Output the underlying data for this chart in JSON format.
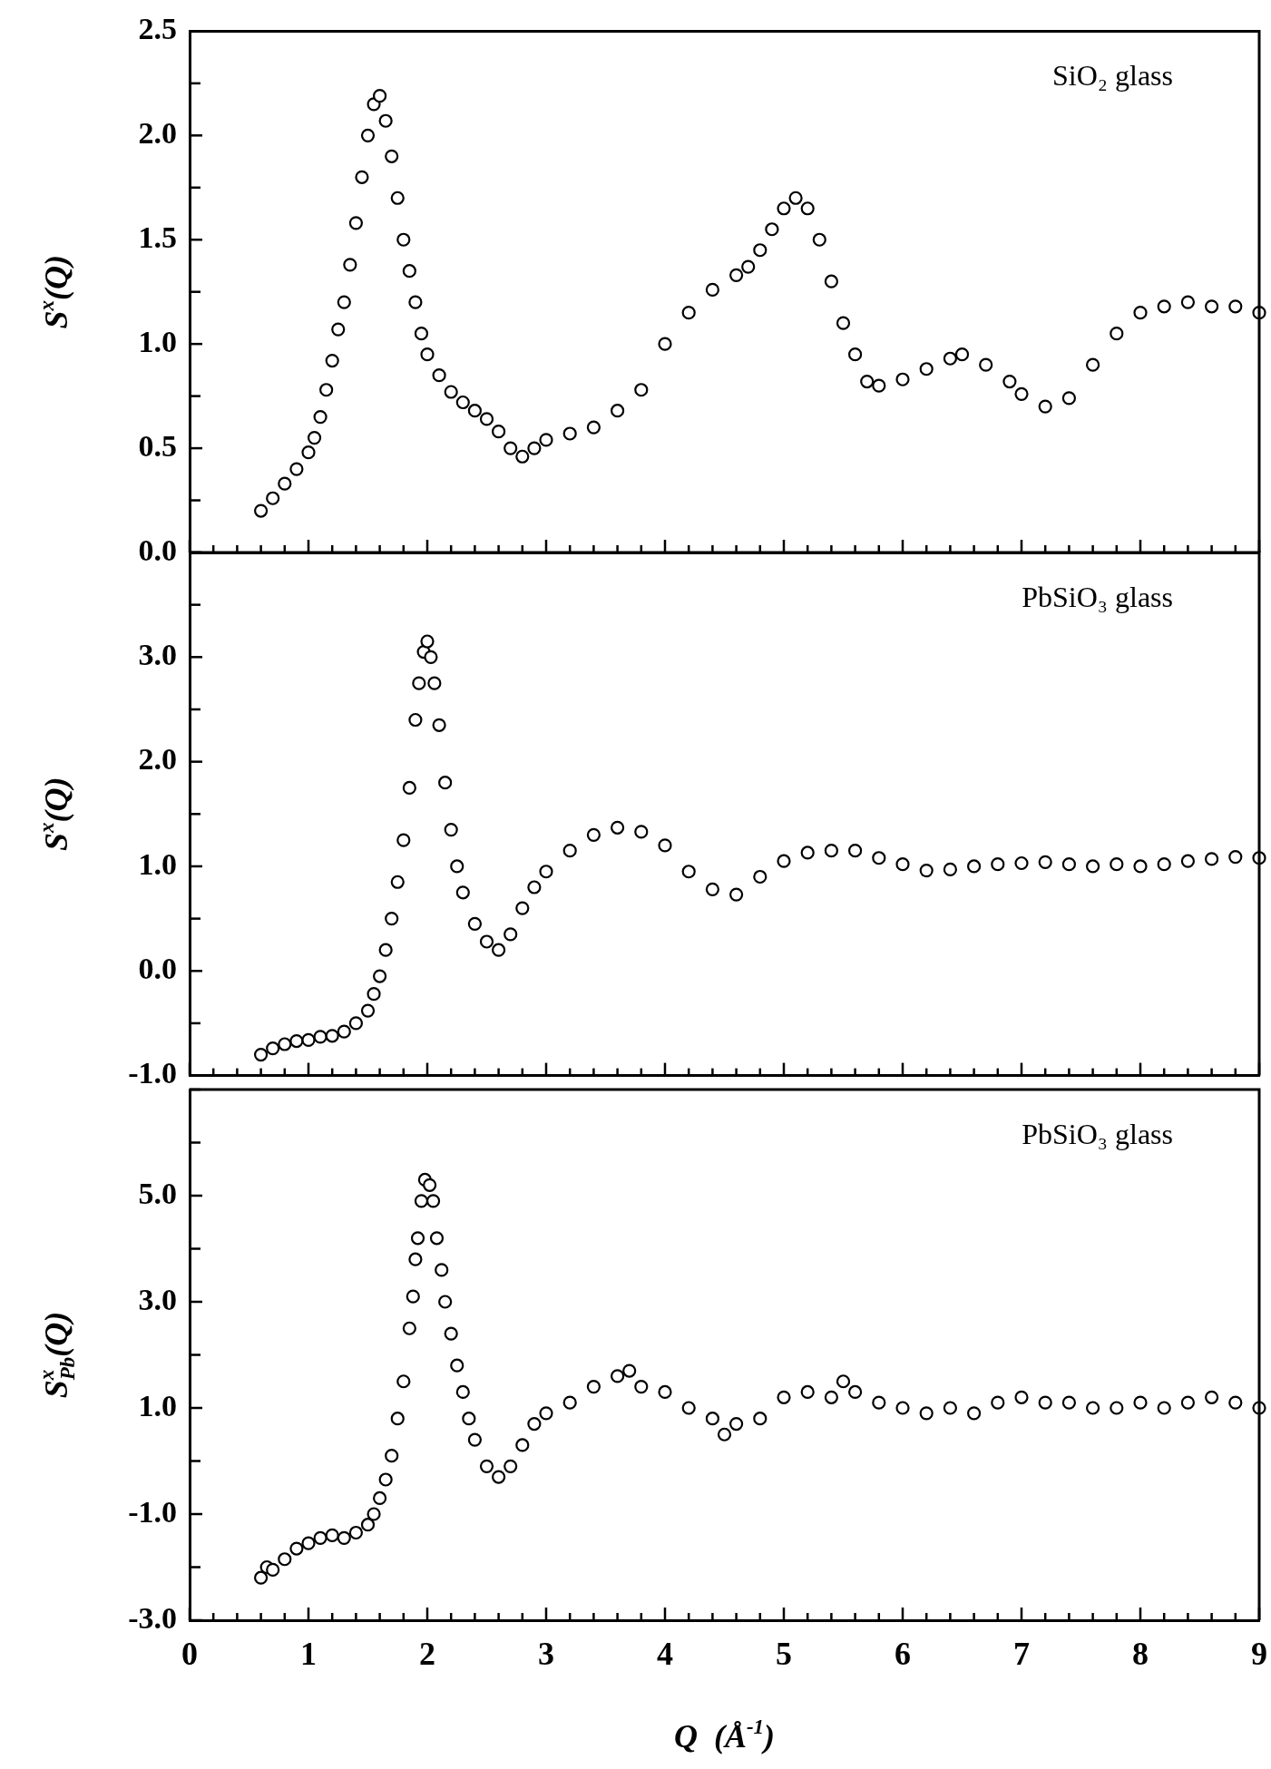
{
  "chart_data": [
    {
      "type": "scatter",
      "ylabel": "S$^{x}$(Q)",
      "annotations": [
        "SiO₂ glass"
      ],
      "marker": "circle",
      "tick_labels": "y",
      "xlim": [
        0,
        9
      ],
      "xticks": [
        0,
        {
          "value": 0.2,
          "label": null
        },
        {
          "value": 0.4,
          "label": null
        },
        {
          "value": 0.6,
          "label": null
        },
        {
          "value": 0.8,
          "label": null
        },
        1,
        {
          "value": 1.2,
          "label": null
        },
        {
          "value": 1.4,
          "label": null
        },
        {
          "value": 1.6,
          "label": null
        },
        {
          "value": 1.8,
          "label": null
        },
        2,
        {
          "value": 2.2,
          "label": null
        },
        {
          "value": 2.4,
          "label": null
        },
        {
          "value": 2.6,
          "label": null
        },
        {
          "value": 2.8,
          "label": null
        },
        3,
        {
          "value": 3.2,
          "label": null
        },
        {
          "value": 3.4,
          "label": null
        },
        {
          "value": 3.6,
          "label": null
        },
        {
          "value": 3.8,
          "label": null
        },
        4,
        {
          "value": 4.2,
          "label": null
        },
        {
          "value": 4.4,
          "label": null
        },
        {
          "value": 4.6,
          "label": null
        },
        {
          "value": 4.8,
          "label": null
        },
        5,
        {
          "value": 5.2,
          "label": null
        },
        {
          "value": 5.4,
          "label": null
        },
        {
          "value": 5.6,
          "label": null
        },
        {
          "value": 5.8,
          "label": null
        },
        6,
        {
          "value": 6.2,
          "label": null
        },
        {
          "value": 6.4,
          "label": null
        },
        {
          "value": 6.6,
          "label": null
        },
        {
          "value": 6.8,
          "label": null
        },
        7,
        {
          "value": 7.2,
          "label": null
        },
        {
          "value": 7.4,
          "label": null
        },
        {
          "value": 7.6,
          "label": null
        },
        {
          "value": 7.8,
          "label": null
        },
        8,
        {
          "value": 8.2,
          "label": null
        },
        {
          "value": 8.4,
          "label": null
        },
        {
          "value": 8.6,
          "label": null
        },
        {
          "value": 8.8,
          "label": null
        },
        9
      ],
      "ylim": [
        0,
        2.5
      ],
      "yticks": [
        {
          "value": 0,
          "label": "0.0"
        },
        {
          "value": 0.25,
          "label": null
        },
        {
          "value": 0.5,
          "label": "0.5"
        },
        {
          "value": 0.75,
          "label": null
        },
        {
          "value": 1,
          "label": "1.0"
        },
        {
          "value": 1.25,
          "label": null
        },
        {
          "value": 1.5,
          "label": "1.5"
        },
        {
          "value": 1.75,
          "label": null
        },
        {
          "value": 2,
          "label": "2.0"
        },
        {
          "value": 2.25,
          "label": null
        },
        {
          "value": 2.5,
          "label": "2.5"
        }
      ],
      "series": [
        {
          "color": "#000000",
          "x": [
            0.6,
            0.7,
            0.8,
            0.9,
            1.0,
            1.05,
            1.1,
            1.15,
            1.2,
            1.25,
            1.3,
            1.35,
            1.4,
            1.45,
            1.5,
            1.55,
            1.6,
            1.65,
            1.7,
            1.75,
            1.8,
            1.85,
            1.9,
            1.95,
            2.0,
            2.1,
            2.2,
            2.3,
            2.4,
            2.5,
            2.6,
            2.7,
            2.8,
            2.9,
            3.0,
            3.2,
            3.4,
            3.6,
            3.8,
            4.0,
            4.2,
            4.4,
            4.6,
            4.7,
            4.8,
            4.9,
            5.0,
            5.1,
            5.2,
            5.3,
            5.4,
            5.5,
            5.6,
            5.7,
            5.8,
            6.0,
            6.2,
            6.4,
            6.5,
            6.7,
            6.9,
            7.0,
            7.2,
            7.4,
            7.6,
            7.8,
            8.0,
            8.2,
            8.4,
            8.6,
            8.8,
            9.0
          ],
          "values": [
            0.2,
            0.26,
            0.33,
            0.4,
            0.48,
            0.55,
            0.65,
            0.78,
            0.92,
            1.07,
            1.2,
            1.38,
            1.58,
            1.8,
            2.0,
            2.15,
            2.19,
            2.07,
            1.9,
            1.7,
            1.5,
            1.35,
            1.2,
            1.05,
            0.95,
            0.85,
            0.77,
            0.72,
            0.68,
            0.64,
            0.58,
            0.5,
            0.46,
            0.5,
            0.54,
            0.57,
            0.6,
            0.68,
            0.78,
            1.0,
            1.15,
            1.26,
            1.33,
            1.37,
            1.45,
            1.55,
            1.65,
            1.7,
            1.65,
            1.5,
            1.3,
            1.1,
            0.95,
            0.82,
            0.8,
            0.83,
            0.88,
            0.93,
            0.95,
            0.9,
            0.82,
            0.76,
            0.7,
            0.74,
            0.9,
            1.05,
            1.15,
            1.18,
            1.2,
            1.18,
            1.18,
            1.15
          ]
        }
      ]
    },
    {
      "type": "scatter",
      "ylabel": "S$^{x}$(Q)",
      "annotations": [
        "PbSiO₃ glass"
      ],
      "marker": "circle",
      "tick_labels": "y",
      "xlim": [
        0,
        9
      ],
      "xticks": [
        0,
        {
          "value": 0.2,
          "label": null
        },
        {
          "value": 0.4,
          "label": null
        },
        {
          "value": 0.6,
          "label": null
        },
        {
          "value": 0.8,
          "label": null
        },
        1,
        {
          "value": 1.2,
          "label": null
        },
        {
          "value": 1.4,
          "label": null
        },
        {
          "value": 1.6,
          "label": null
        },
        {
          "value": 1.8,
          "label": null
        },
        2,
        {
          "value": 2.2,
          "label": null
        },
        {
          "value": 2.4,
          "label": null
        },
        {
          "value": 2.6,
          "label": null
        },
        {
          "value": 2.8,
          "label": null
        },
        3,
        {
          "value": 3.2,
          "label": null
        },
        {
          "value": 3.4,
          "label": null
        },
        {
          "value": 3.6,
          "label": null
        },
        {
          "value": 3.8,
          "label": null
        },
        4,
        {
          "value": 4.2,
          "label": null
        },
        {
          "value": 4.4,
          "label": null
        },
        {
          "value": 4.6,
          "label": null
        },
        {
          "value": 4.8,
          "label": null
        },
        5,
        {
          "value": 5.2,
          "label": null
        },
        {
          "value": 5.4,
          "label": null
        },
        {
          "value": 5.6,
          "label": null
        },
        {
          "value": 5.8,
          "label": null
        },
        6,
        {
          "value": 6.2,
          "label": null
        },
        {
          "value": 6.4,
          "label": null
        },
        {
          "value": 6.6,
          "label": null
        },
        {
          "value": 6.8,
          "label": null
        },
        7,
        {
          "value": 7.2,
          "label": null
        },
        {
          "value": 7.4,
          "label": null
        },
        {
          "value": 7.6,
          "label": null
        },
        {
          "value": 7.8,
          "label": null
        },
        8,
        {
          "value": 8.2,
          "label": null
        },
        {
          "value": 8.4,
          "label": null
        },
        {
          "value": 8.6,
          "label": null
        },
        {
          "value": 8.8,
          "label": null
        },
        9
      ],
      "ylim": [
        -1,
        4
      ],
      "yticks": [
        {
          "value": -1,
          "label": "-1.0"
        },
        {
          "value": -0.5,
          "label": null
        },
        {
          "value": 0,
          "label": "0.0"
        },
        {
          "value": 0.5,
          "label": null
        },
        {
          "value": 1,
          "label": "1.0"
        },
        {
          "value": 1.5,
          "label": null
        },
        {
          "value": 2,
          "label": "2.0"
        },
        {
          "value": 2.5,
          "label": null
        },
        {
          "value": 3,
          "label": "3.0"
        },
        {
          "value": 3.5,
          "label": null
        },
        {
          "value": 4,
          "label": null
        }
      ],
      "series": [
        {
          "color": "#000000",
          "x": [
            0.6,
            0.7,
            0.8,
            0.9,
            1.0,
            1.1,
            1.2,
            1.3,
            1.4,
            1.5,
            1.55,
            1.6,
            1.65,
            1.7,
            1.75,
            1.8,
            1.85,
            1.9,
            1.93,
            1.97,
            2.0,
            2.03,
            2.06,
            2.1,
            2.15,
            2.2,
            2.25,
            2.3,
            2.4,
            2.5,
            2.6,
            2.7,
            2.8,
            2.9,
            3.0,
            3.2,
            3.4,
            3.6,
            3.8,
            4.0,
            4.2,
            4.4,
            4.6,
            4.8,
            5.0,
            5.2,
            5.4,
            5.6,
            5.8,
            6.0,
            6.2,
            6.4,
            6.6,
            6.8,
            7.0,
            7.2,
            7.4,
            7.6,
            7.8,
            8.0,
            8.2,
            8.4,
            8.6,
            8.8,
            9.0
          ],
          "values": [
            -0.8,
            -0.74,
            -0.7,
            -0.67,
            -0.66,
            -0.63,
            -0.62,
            -0.58,
            -0.5,
            -0.38,
            -0.22,
            -0.05,
            0.2,
            0.5,
            0.85,
            1.25,
            1.75,
            2.4,
            2.75,
            3.05,
            3.15,
            3.0,
            2.75,
            2.35,
            1.8,
            1.35,
            1.0,
            0.75,
            0.45,
            0.28,
            0.2,
            0.35,
            0.6,
            0.8,
            0.95,
            1.15,
            1.3,
            1.37,
            1.33,
            1.2,
            0.95,
            0.78,
            0.73,
            0.9,
            1.05,
            1.13,
            1.15,
            1.15,
            1.08,
            1.02,
            0.96,
            0.97,
            1.0,
            1.02,
            1.03,
            1.04,
            1.02,
            1.0,
            1.02,
            1.0,
            1.02,
            1.05,
            1.07,
            1.09,
            1.08
          ]
        }
      ]
    },
    {
      "type": "scatter",
      "ylabel": "S$^{x}$$_{Pb}$(Q)",
      "xlabel": "Q  (Å$^{-1}$)",
      "annotations": [
        "PbSiO₃ glass"
      ],
      "marker": "circle",
      "xlim": [
        0,
        9
      ],
      "xticks": [
        0,
        {
          "value": 0.2,
          "label": null
        },
        {
          "value": 0.4,
          "label": null
        },
        {
          "value": 0.6,
          "label": null
        },
        {
          "value": 0.8,
          "label": null
        },
        1,
        {
          "value": 1.2,
          "label": null
        },
        {
          "value": 1.4,
          "label": null
        },
        {
          "value": 1.6,
          "label": null
        },
        {
          "value": 1.8,
          "label": null
        },
        2,
        {
          "value": 2.2,
          "label": null
        },
        {
          "value": 2.4,
          "label": null
        },
        {
          "value": 2.6,
          "label": null
        },
        {
          "value": 2.8,
          "label": null
        },
        3,
        {
          "value": 3.2,
          "label": null
        },
        {
          "value": 3.4,
          "label": null
        },
        {
          "value": 3.6,
          "label": null
        },
        {
          "value": 3.8,
          "label": null
        },
        4,
        {
          "value": 4.2,
          "label": null
        },
        {
          "value": 4.4,
          "label": null
        },
        {
          "value": 4.6,
          "label": null
        },
        {
          "value": 4.8,
          "label": null
        },
        5,
        {
          "value": 5.2,
          "label": null
        },
        {
          "value": 5.4,
          "label": null
        },
        {
          "value": 5.6,
          "label": null
        },
        {
          "value": 5.8,
          "label": null
        },
        6,
        {
          "value": 6.2,
          "label": null
        },
        {
          "value": 6.4,
          "label": null
        },
        {
          "value": 6.6,
          "label": null
        },
        {
          "value": 6.8,
          "label": null
        },
        7,
        {
          "value": 7.2,
          "label": null
        },
        {
          "value": 7.4,
          "label": null
        },
        {
          "value": 7.6,
          "label": null
        },
        {
          "value": 7.8,
          "label": null
        },
        8,
        {
          "value": 8.2,
          "label": null
        },
        {
          "value": 8.4,
          "label": null
        },
        {
          "value": 8.6,
          "label": null
        },
        {
          "value": 8.8,
          "label": null
        },
        9
      ],
      "ylim": [
        -3,
        7
      ],
      "yticks": [
        {
          "value": -3,
          "label": "-3.0"
        },
        {
          "value": -2,
          "label": null
        },
        {
          "value": -1,
          "label": "-1.0"
        },
        {
          "value": 0,
          "label": null
        },
        {
          "value": 1,
          "label": "1.0"
        },
        {
          "value": 2,
          "label": null
        },
        {
          "value": 3,
          "label": "3.0"
        },
        {
          "value": 4,
          "label": null
        },
        {
          "value": 5,
          "label": "5.0"
        },
        {
          "value": 6,
          "label": null
        },
        {
          "value": 7,
          "label": null
        }
      ],
      "series": [
        {
          "color": "#000000",
          "x": [
            0.6,
            0.65,
            0.7,
            0.8,
            0.9,
            1.0,
            1.1,
            1.2,
            1.3,
            1.4,
            1.5,
            1.55,
            1.6,
            1.65,
            1.7,
            1.75,
            1.8,
            1.85,
            1.88,
            1.9,
            1.92,
            1.95,
            1.98,
            2.02,
            2.05,
            2.08,
            2.12,
            2.15,
            2.2,
            2.25,
            2.3,
            2.35,
            2.4,
            2.5,
            2.6,
            2.7,
            2.8,
            2.9,
            3.0,
            3.2,
            3.4,
            3.6,
            3.7,
            3.8,
            4.0,
            4.2,
            4.4,
            4.5,
            4.6,
            4.8,
            5.0,
            5.2,
            5.4,
            5.5,
            5.6,
            5.8,
            6.0,
            6.2,
            6.4,
            6.6,
            6.8,
            7.0,
            7.2,
            7.4,
            7.6,
            7.8,
            8.0,
            8.2,
            8.4,
            8.6,
            8.8,
            9.0
          ],
          "values": [
            -2.2,
            -2.0,
            -2.05,
            -1.85,
            -1.65,
            -1.55,
            -1.45,
            -1.4,
            -1.45,
            -1.35,
            -1.2,
            -1.0,
            -0.7,
            -0.35,
            0.1,
            0.8,
            1.5,
            2.5,
            3.1,
            3.8,
            4.2,
            4.9,
            5.3,
            5.2,
            4.9,
            4.2,
            3.6,
            3.0,
            2.4,
            1.8,
            1.3,
            0.8,
            0.4,
            -0.1,
            -0.3,
            -0.1,
            0.3,
            0.7,
            0.9,
            1.1,
            1.4,
            1.6,
            1.7,
            1.4,
            1.3,
            1.0,
            0.8,
            0.5,
            0.7,
            0.8,
            1.2,
            1.3,
            1.2,
            1.5,
            1.3,
            1.1,
            1.0,
            0.9,
            1.0,
            0.9,
            1.1,
            1.2,
            1.1,
            1.1,
            1.0,
            1.0,
            1.1,
            1.0,
            1.1,
            1.2,
            1.1,
            1.0
          ]
        }
      ]
    }
  ]
}
